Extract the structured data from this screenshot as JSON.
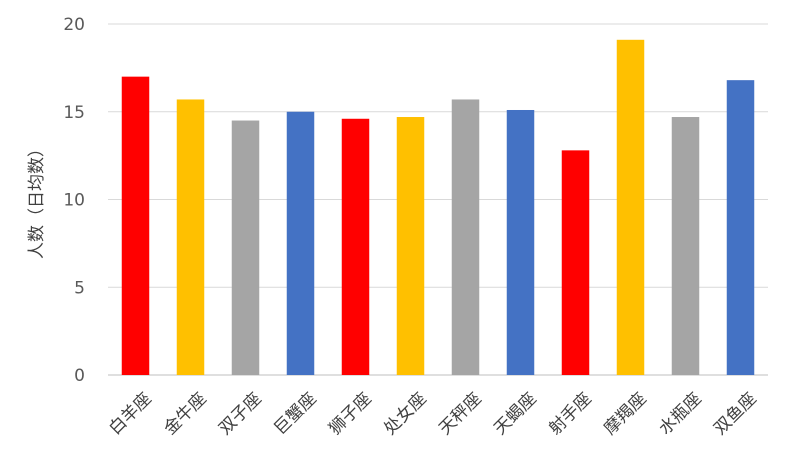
{
  "chart_data": {
    "type": "bar",
    "title": "",
    "xlabel": "",
    "ylabel": "人数（日均数）",
    "ylim": [
      0,
      20
    ],
    "yticks": [
      0,
      5,
      10,
      15,
      20
    ],
    "grid": true,
    "categories": [
      "白羊座",
      "金牛座",
      "双子座",
      "巨蟹座",
      "狮子座",
      "处女座",
      "天秤座",
      "天蝎座",
      "射手座",
      "摩羯座",
      "水瓶座",
      "双鱼座"
    ],
    "values": [
      17.0,
      15.7,
      14.5,
      15.0,
      14.6,
      14.7,
      15.7,
      15.1,
      12.8,
      19.1,
      14.7,
      16.8
    ],
    "colors": [
      "#ff0000",
      "#ffc000",
      "#a5a5a5",
      "#4472c4",
      "#ff0000",
      "#ffc000",
      "#a5a5a5",
      "#4472c4",
      "#ff0000",
      "#ffc000",
      "#a5a5a5",
      "#4472c4"
    ]
  }
}
